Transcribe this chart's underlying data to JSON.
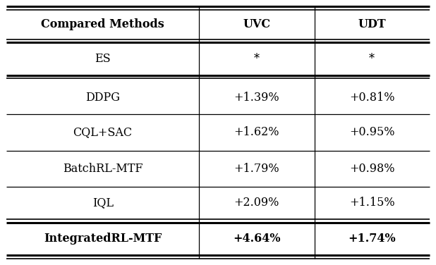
{
  "columns": [
    "Compared Methods",
    "UVC",
    "UDT"
  ],
  "rows": [
    {
      "method": "ES",
      "uvc": "*",
      "udt": "*",
      "bold": false
    },
    {
      "method": "DDPG",
      "uvc": "+1.39%",
      "udt": "+0.81%",
      "bold": false
    },
    {
      "method": "CQL+SAC",
      "uvc": "+1.62%",
      "udt": "+0.95%",
      "bold": false
    },
    {
      "method": "BatchRL-MTF",
      "uvc": "+1.79%",
      "udt": "+0.98%",
      "bold": false
    },
    {
      "method": "IQL",
      "uvc": "+2.09%",
      "udt": "+1.15%",
      "bold": false
    },
    {
      "method": "IntegratedRL-MTF",
      "uvc": "+4.64%",
      "udt": "+1.74%",
      "bold": true
    }
  ],
  "header_fontsize": 11.5,
  "body_fontsize": 11.5,
  "background_color": "#ffffff",
  "line_color": "#000000",
  "fig_width": 6.18,
  "fig_height": 3.76,
  "dpi": 100
}
